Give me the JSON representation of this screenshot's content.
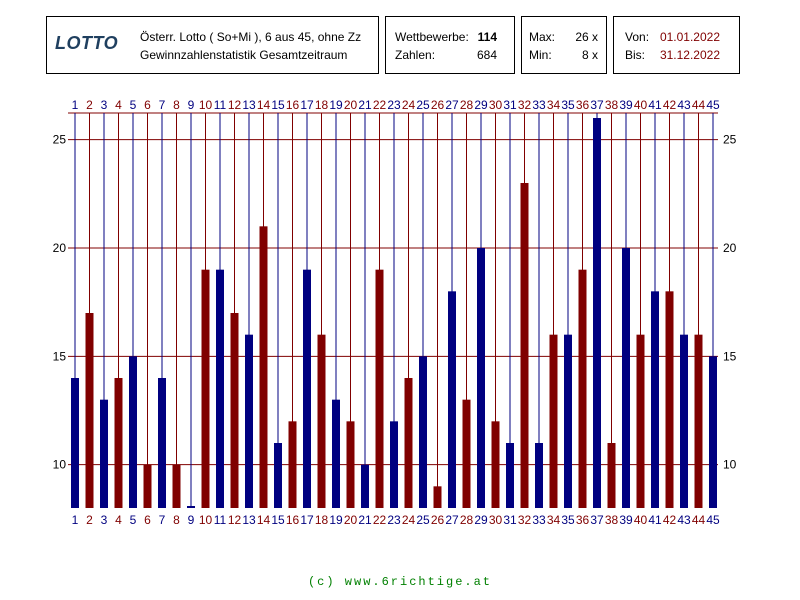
{
  "header": {
    "logo": "LOTTO",
    "line1": "Österr. Lotto ( So+Mi ), 6 aus 45, ohne Zz",
    "line2": "Gewinnzahlenstatistik Gesamtzeitraum",
    "wettbewerbe_label": "Wettbewerbe:",
    "wettbewerbe_value": "114",
    "zahlen_label": "Zahlen:",
    "zahlen_value": "684",
    "max_label": "Max:",
    "max_value": "26 x",
    "min_label": "Min:",
    "min_value": "8 x",
    "von_label": "Von:",
    "von_value": "01.01.2022",
    "bis_label": "Bis:",
    "bis_value": "31.12.2022"
  },
  "footer": "(c) www.6richtige.at",
  "colors": {
    "blue": "#000080",
    "red": "#800000",
    "grid": "#800000"
  },
  "chart_data": {
    "type": "bar",
    "categories": [
      "1",
      "2",
      "3",
      "4",
      "5",
      "6",
      "7",
      "8",
      "9",
      "10",
      "11",
      "12",
      "13",
      "14",
      "15",
      "16",
      "17",
      "18",
      "19",
      "20",
      "21",
      "22",
      "23",
      "24",
      "25",
      "26",
      "27",
      "28",
      "29",
      "30",
      "31",
      "32",
      "33",
      "34",
      "35",
      "36",
      "37",
      "38",
      "39",
      "40",
      "41",
      "42",
      "43",
      "44",
      "45"
    ],
    "values": [
      14,
      17,
      13,
      14,
      15,
      10,
      14,
      10,
      8,
      19,
      19,
      17,
      16,
      21,
      11,
      12,
      19,
      16,
      13,
      12,
      10,
      19,
      12,
      14,
      15,
      9,
      18,
      13,
      20,
      12,
      11,
      23,
      11,
      16,
      16,
      19,
      26,
      11,
      20,
      16,
      18,
      18,
      16,
      16,
      15
    ],
    "ylim": [
      8,
      26
    ],
    "yticks": [
      10,
      15,
      20,
      25
    ],
    "grid": true,
    "title": "",
    "xlabel": "",
    "ylabel": ""
  }
}
